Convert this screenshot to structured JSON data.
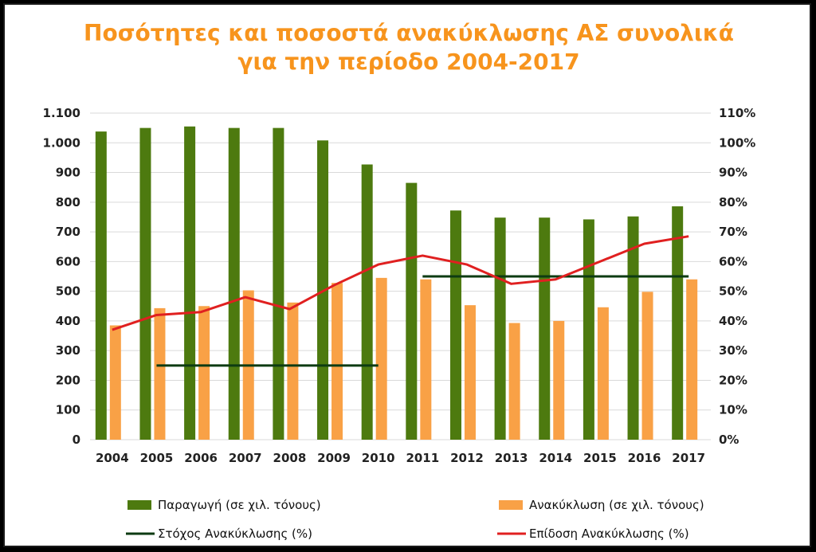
{
  "chart_data": {
    "type": "bar",
    "title_lines": [
      "Ποσότητες και ποσοστά ανακύκλωσης ΑΣ συνολικά",
      "για την περίοδο 2004-2017"
    ],
    "categories": [
      "2004",
      "2005",
      "2006",
      "2007",
      "2008",
      "2009",
      "2010",
      "2011",
      "2012",
      "2013",
      "2014",
      "2015",
      "2016",
      "2017"
    ],
    "left_axis": {
      "ylim": [
        0,
        1100
      ],
      "ticks": [
        0,
        100,
        200,
        300,
        400,
        500,
        600,
        700,
        800,
        900,
        1000,
        1100
      ],
      "tick_labels": [
        "0",
        "100",
        "200",
        "300",
        "400",
        "500",
        "600",
        "700",
        "800",
        "900",
        "1.000",
        "1.100"
      ]
    },
    "right_axis": {
      "ylim": [
        0,
        110
      ],
      "tick_labels": [
        "0%",
        "10%",
        "20%",
        "30%",
        "40%",
        "50%",
        "60%",
        "70%",
        "80%",
        "90%",
        "100%",
        "110%"
      ]
    },
    "grid": true,
    "legend_position": "bottom",
    "series": [
      {
        "name": "Παραγωγή (σε χιλ. τόνους)",
        "kind": "bar",
        "axis": "left",
        "color": "#4d7a0f",
        "values": [
          1038,
          1050,
          1055,
          1050,
          1050,
          1008,
          927,
          865,
          772,
          748,
          748,
          742,
          752,
          786
        ]
      },
      {
        "name": "Ανακύκλωση (σε χιλ. τόνους)",
        "kind": "bar",
        "axis": "left",
        "color": "#f9a146",
        "values": [
          385,
          443,
          450,
          503,
          462,
          528,
          545,
          540,
          453,
          393,
          400,
          446,
          498,
          540
        ]
      },
      {
        "name": "Στόχος Ανακύκλωσης (%)",
        "kind": "step",
        "axis": "right",
        "color": "#0d3b12",
        "segments": [
          {
            "from": "2005",
            "to": "2010",
            "value": 25
          },
          {
            "from": "2011",
            "to": "2017",
            "value": 55
          }
        ]
      },
      {
        "name": "Επίδοση Ανακύκλωσης (%)",
        "kind": "line",
        "axis": "right",
        "color": "#e02020",
        "values": [
          37,
          42,
          43,
          48,
          44,
          52,
          59,
          62,
          59,
          52.5,
          54,
          60,
          66,
          68.5
        ]
      }
    ]
  }
}
